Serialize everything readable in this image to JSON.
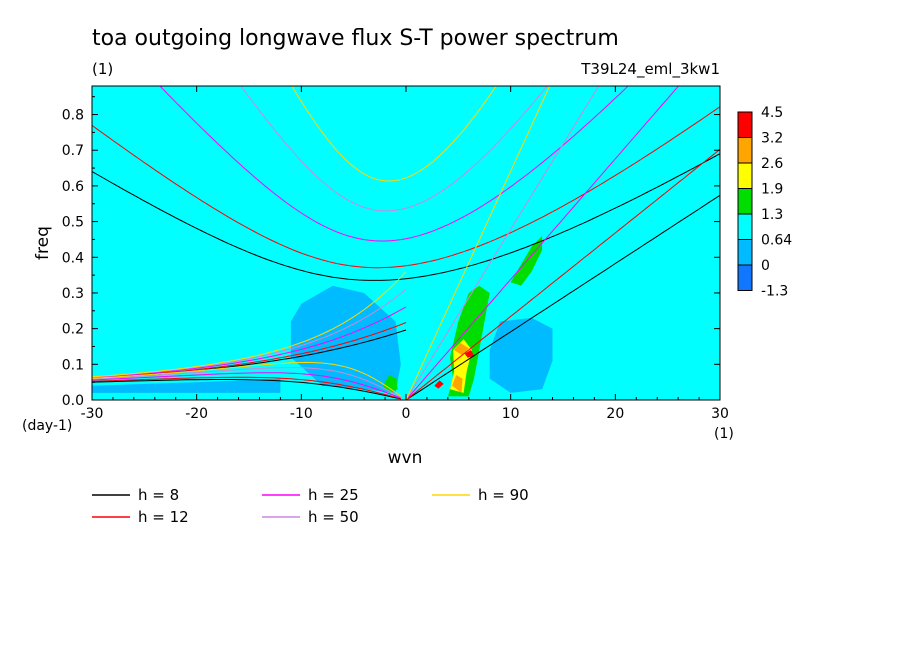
{
  "chart_data": {
    "type": "heatmap",
    "title": "toa outgoing longwave flux S-T power spectrum",
    "subtitle_left": "(1)",
    "subtitle_right": "T39L24_eml_3kw1",
    "xlabel": "wvn",
    "ylabel": "freq",
    "xunit": "(1)",
    "yunit": "(day-1)",
    "xlim": [
      -30,
      30
    ],
    "ylim": [
      0,
      0.88
    ],
    "xticks": [
      -30,
      -20,
      -10,
      0,
      10,
      20,
      30
    ],
    "xtick_labels": [
      "-30",
      "-20",
      "-10",
      "0",
      "10",
      "20",
      "30"
    ],
    "yticks": [
      0.0,
      0.1,
      0.2,
      0.3,
      0.4,
      0.5,
      0.6,
      0.7,
      0.8
    ],
    "ytick_labels": [
      "0.0",
      "0.1",
      "0.2",
      "0.3",
      "0.4",
      "0.5",
      "0.6",
      "0.7",
      "0.8"
    ],
    "background_level_color": "#00ffff",
    "colorbar": {
      "labels": [
        "4.5",
        "3.2",
        "2.6",
        "1.9",
        "1.3",
        "0.64",
        "0",
        "-1.3"
      ],
      "colors": [
        "#ff0000",
        "#ffa500",
        "#ffff00",
        "#00dd00",
        "#00ffff",
        "#00bbff",
        "#1177ff"
      ]
    },
    "contour_regions": [
      {
        "level": "0.64",
        "color": "#00bbff",
        "points": [
          [
            -10,
            0.27
          ],
          [
            -7,
            0.32
          ],
          [
            -4,
            0.3
          ],
          [
            -1,
            0.22
          ],
          [
            -0.5,
            0.1
          ],
          [
            -1,
            0.02
          ],
          [
            -4,
            0.03
          ],
          [
            -8,
            0.04
          ],
          [
            -11,
            0.12
          ],
          [
            -11,
            0.22
          ]
        ]
      },
      {
        "level": "0.64",
        "color": "#00bbff",
        "points": [
          [
            9,
            0.22
          ],
          [
            12,
            0.23
          ],
          [
            14,
            0.2
          ],
          [
            14,
            0.11
          ],
          [
            13,
            0.03
          ],
          [
            10,
            0.02
          ],
          [
            8,
            0.06
          ],
          [
            8,
            0.14
          ]
        ]
      },
      {
        "level": "0.64",
        "color": "#00bbff",
        "points": [
          [
            -30,
            0.04
          ],
          [
            -20,
            0.05
          ],
          [
            -12,
            0.06
          ],
          [
            -12,
            0.02
          ],
          [
            -30,
            0.02
          ]
        ]
      },
      {
        "level": "1.3",
        "color": "#00dd00",
        "points": [
          [
            4,
            0.01
          ],
          [
            4.5,
            0.06
          ],
          [
            4.2,
            0.12
          ],
          [
            5,
            0.22
          ],
          [
            6,
            0.3
          ],
          [
            7,
            0.32
          ],
          [
            8,
            0.3
          ],
          [
            7.5,
            0.22
          ],
          [
            7,
            0.14
          ],
          [
            6.5,
            0.06
          ],
          [
            6,
            0.01
          ]
        ]
      },
      {
        "level": "1.3",
        "color": "#00dd00",
        "points": [
          [
            10,
            0.33
          ],
          [
            11,
            0.38
          ],
          [
            12,
            0.43
          ],
          [
            13,
            0.46
          ],
          [
            13,
            0.42
          ],
          [
            12,
            0.36
          ],
          [
            11,
            0.32
          ]
        ]
      },
      {
        "level": "1.3",
        "color": "#00dd00",
        "points": [
          [
            -2.2,
            0.04
          ],
          [
            -1.6,
            0.07
          ],
          [
            -0.9,
            0.06
          ],
          [
            -0.8,
            0.03
          ],
          [
            -1.6,
            0.02
          ]
        ]
      },
      {
        "level": "1.9",
        "color": "#ffff00",
        "points": [
          [
            4.2,
            0.03
          ],
          [
            4.6,
            0.08
          ],
          [
            4.5,
            0.14
          ],
          [
            5.5,
            0.17
          ],
          [
            6.3,
            0.14
          ],
          [
            5.8,
            0.08
          ],
          [
            5.5,
            0.02
          ]
        ]
      },
      {
        "level": "2.6",
        "color": "#ffa500",
        "points": [
          [
            4.4,
            0.04
          ],
          [
            4.8,
            0.07
          ],
          [
            5.4,
            0.06
          ],
          [
            5.3,
            0.02
          ]
        ]
      },
      {
        "level": "2.6",
        "color": "#ffa500",
        "points": [
          [
            4.6,
            0.14
          ],
          [
            5.2,
            0.16
          ],
          [
            6.0,
            0.145
          ],
          [
            5.4,
            0.125
          ]
        ]
      },
      {
        "level": "3.2",
        "color": "#ff0000",
        "points": [
          [
            2.7,
            0.04
          ],
          [
            3.2,
            0.055
          ],
          [
            3.6,
            0.045
          ],
          [
            3.1,
            0.032
          ]
        ]
      },
      {
        "level": "3.2",
        "color": "#ff0000",
        "points": [
          [
            5.6,
            0.13
          ],
          [
            6.2,
            0.14
          ],
          [
            6.5,
            0.125
          ],
          [
            5.9,
            0.118
          ]
        ]
      }
    ],
    "dispersion_legend": [
      {
        "label": "h =  8",
        "color": "#000000"
      },
      {
        "label": "h = 12",
        "color": "#ff0000"
      },
      {
        "label": "h = 25",
        "color": "#ff00ff"
      },
      {
        "label": "h = 50",
        "color": "#cc88dd"
      },
      {
        "label": "h = 90",
        "color": "#ffd700"
      }
    ],
    "dispersion_curves": [
      {
        "name": "h =  8",
        "color": "#000000",
        "h": 8
      },
      {
        "name": "h = 12",
        "color": "#ff0000",
        "h": 12
      },
      {
        "name": "h = 25",
        "color": "#ff00ff",
        "h": 25
      },
      {
        "name": "h = 50",
        "color": "#cc88dd",
        "h": 50
      },
      {
        "name": "h = 90",
        "color": "#ffd700",
        "h": 90
      }
    ]
  }
}
